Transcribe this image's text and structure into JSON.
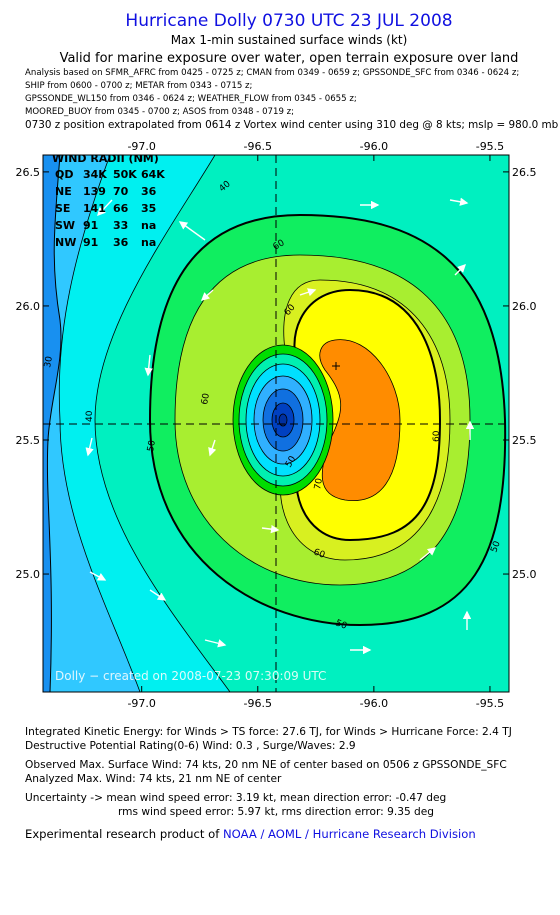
{
  "header": {
    "title": "Hurricane Dolly 0730 UTC 23 JUL 2008",
    "subtitle": "Max 1-min sustained surface winds (kt)",
    "validity": "Valid for marine exposure over water, open terrain exposure over land",
    "analysis_lines": [
      "Analysis based on   SFMR_AFRC from 0425 - 0725 z;  CMAN from 0349 - 0659 z;  GPSSONDE_SFC from 0346 - 0624 z;",
      "SHIP from 0600 - 0700 z;   METAR from 0343 - 0715 z;",
      "GPSSONDE_WL150 from 0346 - 0624 z;  WEATHER_FLOW from 0345 - 0655 z;",
      "MOORED_BUOY from 0345 - 0700 z;   ASOS from 0348 - 0719 z;"
    ],
    "position_note": "0730 z position extrapolated from 0614 z Vortex wind center using 310 deg @ 8 kts; mslp = 980.0 mb"
  },
  "map": {
    "xlim": [
      -97.425,
      -95.418
    ],
    "ylim": [
      24.56,
      26.563
    ],
    "xticks": [
      {
        "value": -97.0,
        "label": "-97.0"
      },
      -96.5,
      {
        "value": -96.0,
        "label": "-96.0"
      },
      -95.5
    ],
    "yticks": [
      {
        "value": 25.0,
        "label": "25.0"
      },
      25.5,
      {
        "value": 26.0,
        "label": "26.0"
      },
      26.5
    ],
    "contour_labels": [
      40,
      30,
      40,
      50,
      60,
      60,
      60,
      50,
      60,
      70,
      60,
      50,
      50
    ],
    "wind_radii": {
      "title": "WIND RADII (NM)",
      "columns": [
        "QD",
        "34K",
        "50K",
        "64K"
      ],
      "rows": [
        [
          "NE",
          139,
          70,
          36
        ],
        [
          "SE",
          141,
          66,
          35
        ],
        [
          "SW",
          91,
          33,
          "na"
        ],
        [
          "NW",
          91,
          36,
          "na"
        ]
      ]
    },
    "credit": "Dolly − created on 2008-07-23 07:30:09 UTC"
  },
  "footer": {
    "ike": "Integrated Kinetic Energy:  for Winds > TS force: 27.6 TJ,  for Winds > Hurricane Force: 2.4 TJ",
    "dpr": "Destructive Potential Rating(0-6)   Wind: 0.3 , Surge/Waves: 2.9",
    "observed": "Observed Max. Surface Wind: 74 kts, 20 nm NE of center based on 0506 z GPSSONDE_SFC",
    "analyzed": "Analyzed Max. Wind: 74 kts, 21 nm NE of center",
    "uncertainty_1": "Uncertainty -> mean wind speed error: 3.19 kt,   mean direction error:  -0.47 deg",
    "uncertainty_2": "rms wind speed error: 5.97 kt,   rms direction error: 9.35 deg",
    "product_prefix": "Experimental research product of",
    "product_org": "NOAA / AOML / Hurricane Research Division"
  }
}
